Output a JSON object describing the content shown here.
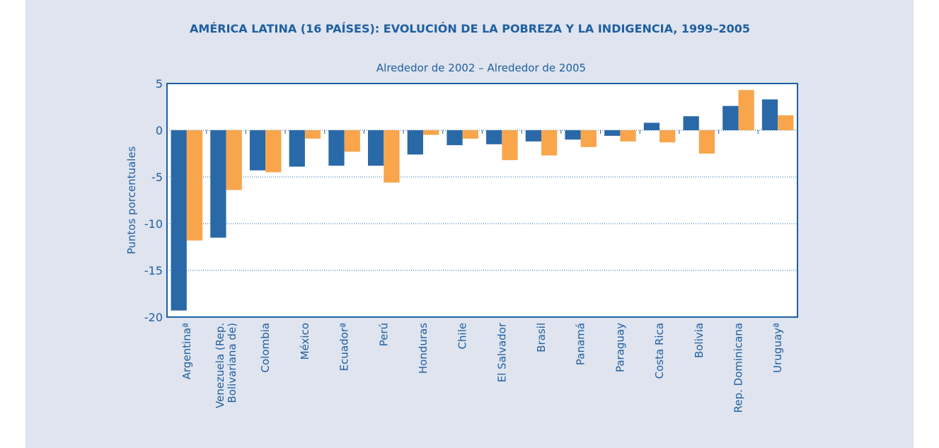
{
  "chart_data": {
    "type": "bar",
    "title": "AMÉRICA LATINA (16 PAÍSES): EVOLUCIÓN DE LA POBREZA Y LA INDIGENCIA, 1999–2005",
    "subtitle": "Alrededor de 2002 – Alrededor de 2005",
    "y_label": "Puntos porcentuales",
    "categories": [
      "Argentinaª",
      "Venezuela (Rep.\nBolivariana de)",
      "Colombia",
      "México",
      "Ecuadorª",
      "Perú",
      "Honduras",
      "Chile",
      "El Salvador",
      "Brasil",
      "Panamá",
      "Paraguay",
      "Costa Rica",
      "Bolivia",
      "Rep. Dominicana",
      "Uruguayª"
    ],
    "series": [
      {
        "color": "#2a69a8",
        "values": [
          -19.3,
          -11.5,
          -4.3,
          -3.9,
          -3.8,
          -3.8,
          -2.6,
          -1.6,
          -1.5,
          -1.2,
          -1.0,
          -0.6,
          0.8,
          1.5,
          2.6,
          3.3
        ]
      },
      {
        "color": "#f8a54c",
        "values": [
          -11.8,
          -6.4,
          -4.5,
          -0.9,
          -2.3,
          -5.6,
          -0.5,
          -0.9,
          -3.2,
          -2.7,
          -1.8,
          -1.2,
          -1.3,
          -2.5,
          4.3,
          1.6
        ]
      }
    ],
    "ylim": [
      -20,
      5
    ],
    "yticks": [
      5,
      0,
      -5,
      -10,
      -15,
      -20
    ],
    "grid": true
  }
}
